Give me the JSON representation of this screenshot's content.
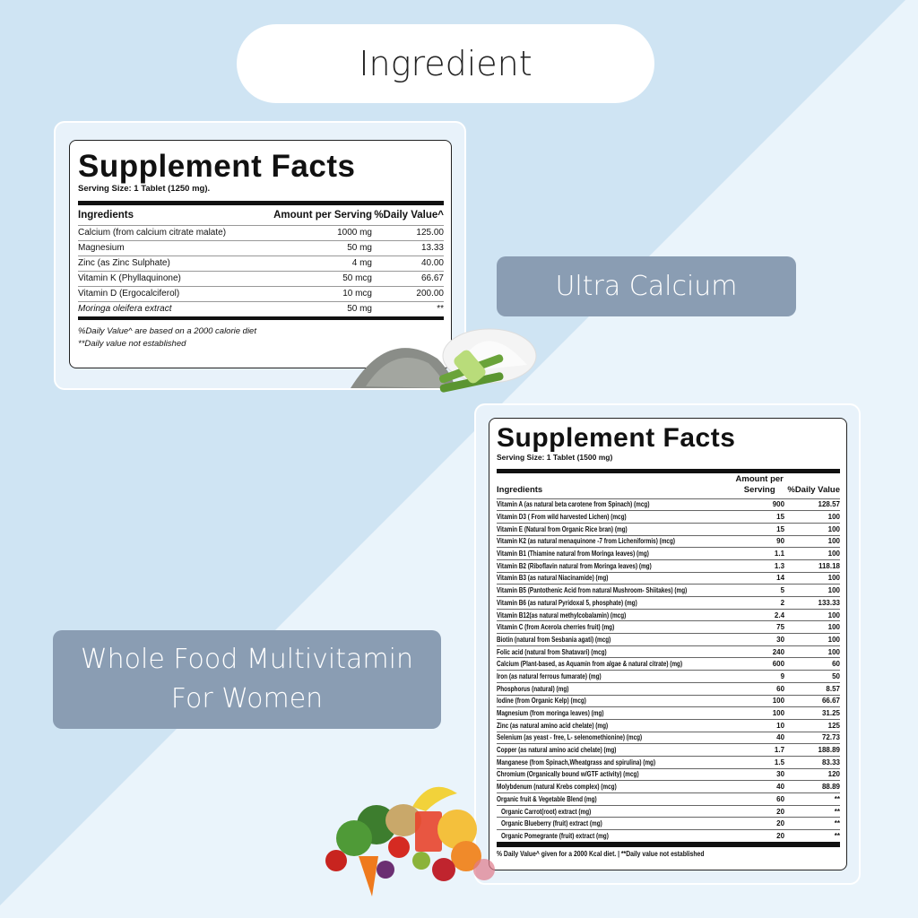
{
  "header": {
    "title": "Ingredient"
  },
  "colors": {
    "bg_dark": "#cfe4f3",
    "bg_light": "#eaf4fb",
    "tag": "#8a9db3"
  },
  "product1": {
    "tag": "Ultra Calcium",
    "heading": "Supplement Facts",
    "serving": "Serving Size: 1 Tablet (1250 mg).",
    "columns": [
      "Ingredients",
      "Amount per Serving",
      "%Daily Value^"
    ],
    "rows": [
      [
        "Calcium (from calcium citrate malate)",
        "1000 mg",
        "125.00"
      ],
      [
        "Magnesium",
        "50 mg",
        "13.33"
      ],
      [
        "Zinc (as Zinc Sulphate)",
        "4 mg",
        "40.00"
      ],
      [
        "Vitamin K (Phyllaquinone)",
        "50 mcg",
        "66.67"
      ],
      [
        "Vitamin D (Ergocalciferol)",
        "10 mcg",
        "200.00"
      ],
      [
        "Moringa oleifera extract",
        "50 mg",
        "**"
      ]
    ],
    "footnotes": [
      "%Daily Value^ are based on a 2000 calorie diet",
      "**Daily value not established"
    ]
  },
  "product2": {
    "tag_line1": "Whole Food Multivitamin",
    "tag_line2": "For Women",
    "heading": "Supplement Facts",
    "serving": "Serving Size: 1 Tablet (1500 mg)",
    "columns": [
      "Ingredients",
      "Amount per Serving",
      "%Daily Value"
    ],
    "rows": [
      [
        "Vitamin A (as natural beta carotene from Spinach) (mcg)",
        "900",
        "128.57"
      ],
      [
        "Vitamin D3 ( From wild harvested Lichen) (mcg)",
        "15",
        "100"
      ],
      [
        "Vitamin E (Natural from Organic Rice bran) (mg)",
        "15",
        "100"
      ],
      [
        "Vitamin K2 (as natural menaquinone -7 from Licheniformis) (mcg)",
        "90",
        "100"
      ],
      [
        "Vitamin B1 (Thiamine natural from Moringa leaves) (mg)",
        "1.1",
        "100"
      ],
      [
        "Vitamin B2 (Riboflavin natural from Moringa leaves) (mg)",
        "1.3",
        "118.18"
      ],
      [
        "Vitamin B3 (as natural Niacinamide) (mg)",
        "14",
        "100"
      ],
      [
        "Vitamin B5 (Pantothenic Acid from natural Mushroom- Shiitakes) (mg)",
        "5",
        "100"
      ],
      [
        "Vitamin B6 (as natural Pyridoxal 5, phosphate) (mg)",
        "2",
        "133.33"
      ],
      [
        "Vitamin B12(as natural methylcobalamin) (mcg)",
        "2.4",
        "100"
      ],
      [
        "Vitamin C (from Acerola cherries fruit) (mg)",
        "75",
        "100"
      ],
      [
        "Biotin (natural from Sesbania agati) (mcg)",
        "30",
        "100"
      ],
      [
        "Folic acid (natural from Shatavari) (mcg)",
        "240",
        "100"
      ],
      [
        "Calcium (Plant-based, as Aquamin from algae & natural citrate) (mg)",
        "600",
        "60"
      ],
      [
        "Iron (as natural ferrous fumarate) (mg)",
        "9",
        "50"
      ],
      [
        "Phosphorus (natural) (mg)",
        "60",
        "8.57"
      ],
      [
        "Iodine (from Organic Kelp) (mcg)",
        "100",
        "66.67"
      ],
      [
        "Magnesium (from moringa leaves) (mg)",
        "100",
        "31.25"
      ],
      [
        "Zinc (as natural amino acid chelate) (mg)",
        "10",
        "125"
      ],
      [
        "Selenium (as yeast - free, L- selenomethionine) (mcg)",
        "40",
        "72.73"
      ],
      [
        "Copper (as natural amino acid chelate) (mg)",
        "1.7",
        "188.89"
      ],
      [
        "Manganese (from Spinach,Wheatgrass and spirulina) (mg)",
        "1.5",
        "83.33"
      ],
      [
        "Chromium (Organically bound w/GTF activity) (mcg)",
        "30",
        "120"
      ],
      [
        "Molybdenum (natural Krebs complex) (mcg)",
        "40",
        "88.89"
      ],
      [
        "Organic fruit & Vegetable Blend (mg)",
        "60",
        "**"
      ],
      [
        "Organic Carrot(root) extract (mg)",
        "20",
        "**"
      ],
      [
        "Organic Blueberry (fruit) extract (mg)",
        "20",
        "**"
      ],
      [
        "Organic Pomegrante (fruit) extract (mg)",
        "20",
        "**"
      ]
    ],
    "footnote": "% Daily Value^ given for a 2000 Kcal diet.  |  **Daily value not established"
  }
}
